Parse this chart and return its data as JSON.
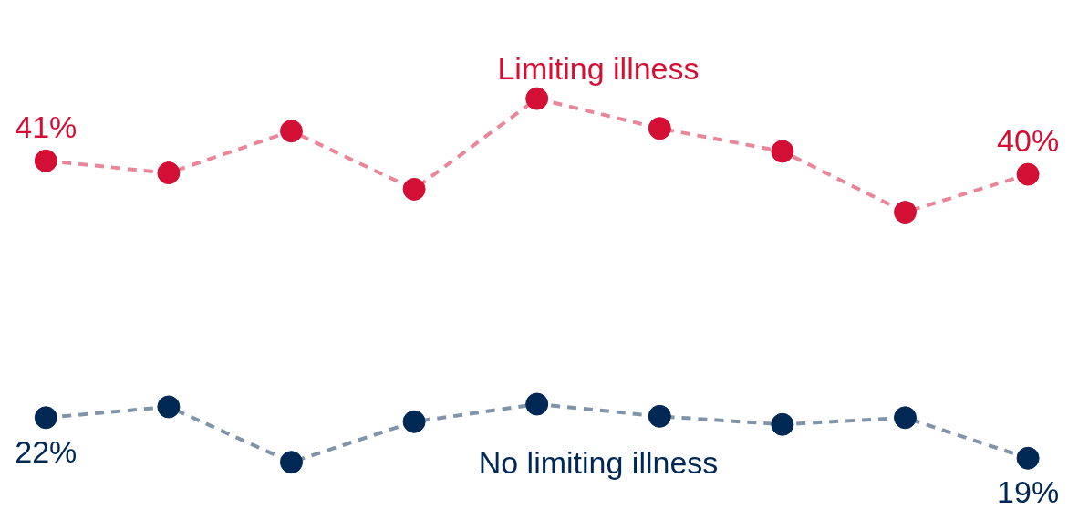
{
  "chart_data": {
    "type": "line",
    "categories": [
      null,
      null,
      null,
      null,
      null,
      null,
      null,
      null,
      null
    ],
    "marker": "circle",
    "line_style": "dashed",
    "series": [
      {
        "name": "Limiting illness",
        "color": "#d40f35",
        "values": [
          41,
          40.1,
          43.2,
          38.9,
          45.6,
          43.4,
          41.7,
          37.2,
          40
        ],
        "value_labels": [
          "41%",
          null,
          null,
          null,
          null,
          null,
          null,
          null,
          "40%"
        ]
      },
      {
        "name": "No limiting illness",
        "color": "#002855",
        "values": [
          22,
          22.8,
          18.7,
          21.7,
          23.0,
          22.1,
          21.5,
          22.0,
          19
        ],
        "value_labels": [
          "22%",
          null,
          null,
          null,
          null,
          null,
          null,
          null,
          "19%"
        ]
      }
    ]
  }
}
